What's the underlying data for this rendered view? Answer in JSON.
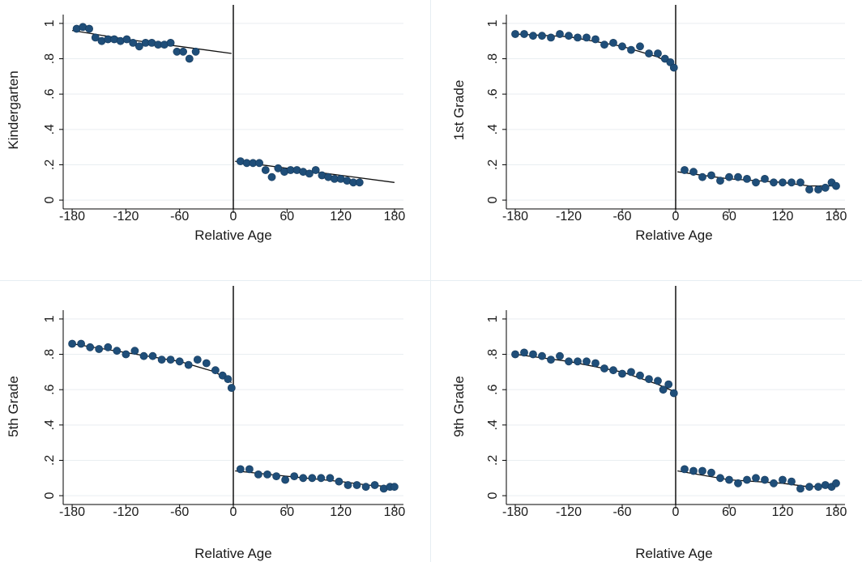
{
  "colors": {
    "marker": "#1f4e79",
    "fit": "#111111",
    "grid": "#e9eef1",
    "axis": "#000000"
  },
  "chart_data": [
    {
      "type": "scatter",
      "ylabel": "Kindergarten",
      "xlabel": "Relative Age",
      "xlim": [
        -190,
        190
      ],
      "ylim": [
        -0.05,
        1.05
      ],
      "xticks": [
        "-180",
        "-120",
        "-60",
        "0",
        "60",
        "120",
        "180"
      ],
      "yticks": [
        "0",
        ".2",
        ".4",
        ".6",
        ".8",
        "1"
      ],
      "grid": true,
      "cutoff": 0,
      "points": [
        [
          -175,
          0.97
        ],
        [
          -168,
          0.98
        ],
        [
          -161,
          0.97
        ],
        [
          -154,
          0.92
        ],
        [
          -147,
          0.9
        ],
        [
          -140,
          0.91
        ],
        [
          -133,
          0.91
        ],
        [
          -126,
          0.9
        ],
        [
          -119,
          0.91
        ],
        [
          -112,
          0.89
        ],
        [
          -105,
          0.87
        ],
        [
          -98,
          0.89
        ],
        [
          -91,
          0.89
        ],
        [
          -84,
          0.88
        ],
        [
          -77,
          0.88
        ],
        [
          -70,
          0.89
        ],
        [
          -63,
          0.84
        ],
        [
          -56,
          0.84
        ],
        [
          -49,
          0.8
        ],
        [
          -42,
          0.84
        ],
        [
          8,
          0.22
        ],
        [
          15,
          0.21
        ],
        [
          22,
          0.21
        ],
        [
          29,
          0.21
        ],
        [
          36,
          0.17
        ],
        [
          43,
          0.13
        ],
        [
          50,
          0.18
        ],
        [
          57,
          0.16
        ],
        [
          64,
          0.17
        ],
        [
          71,
          0.17
        ],
        [
          78,
          0.16
        ],
        [
          85,
          0.15
        ],
        [
          92,
          0.17
        ],
        [
          99,
          0.14
        ],
        [
          106,
          0.13
        ],
        [
          113,
          0.12
        ],
        [
          120,
          0.12
        ],
        [
          127,
          0.11
        ],
        [
          134,
          0.1
        ],
        [
          141,
          0.1
        ]
      ],
      "fit_left": [
        [
          -180,
          0.96
        ],
        [
          -120,
          0.91
        ],
        [
          -60,
          0.87
        ],
        [
          -2,
          0.83
        ]
      ],
      "fit_right": [
        [
          2,
          0.22
        ],
        [
          60,
          0.18
        ],
        [
          120,
          0.14
        ],
        [
          180,
          0.1
        ]
      ]
    },
    {
      "type": "scatter",
      "ylabel": "1st Grade",
      "xlabel": "Relative Age",
      "xlim": [
        -190,
        190
      ],
      "ylim": [
        -0.05,
        1.05
      ],
      "xticks": [
        "-180",
        "-120",
        "-60",
        "0",
        "60",
        "120",
        "180"
      ],
      "yticks": [
        "0",
        ".2",
        ".4",
        ".6",
        ".8",
        "1"
      ],
      "grid": true,
      "cutoff": 0,
      "points": [
        [
          -180,
          0.94
        ],
        [
          -170,
          0.94
        ],
        [
          -160,
          0.93
        ],
        [
          -150,
          0.93
        ],
        [
          -140,
          0.92
        ],
        [
          -130,
          0.94
        ],
        [
          -120,
          0.93
        ],
        [
          -110,
          0.92
        ],
        [
          -100,
          0.92
        ],
        [
          -90,
          0.91
        ],
        [
          -80,
          0.88
        ],
        [
          -70,
          0.89
        ],
        [
          -60,
          0.87
        ],
        [
          -50,
          0.85
        ],
        [
          -40,
          0.87
        ],
        [
          -30,
          0.83
        ],
        [
          -20,
          0.83
        ],
        [
          -12,
          0.8
        ],
        [
          -6,
          0.78
        ],
        [
          -2,
          0.75
        ],
        [
          10,
          0.17
        ],
        [
          20,
          0.16
        ],
        [
          30,
          0.13
        ],
        [
          40,
          0.14
        ],
        [
          50,
          0.11
        ],
        [
          60,
          0.13
        ],
        [
          70,
          0.13
        ],
        [
          80,
          0.12
        ],
        [
          90,
          0.1
        ],
        [
          100,
          0.12
        ],
        [
          110,
          0.1
        ],
        [
          120,
          0.1
        ],
        [
          130,
          0.1
        ],
        [
          140,
          0.1
        ],
        [
          150,
          0.06
        ],
        [
          160,
          0.06
        ],
        [
          168,
          0.07
        ],
        [
          175,
          0.1
        ],
        [
          180,
          0.08
        ]
      ],
      "fit_left": [
        [
          -180,
          0.94
        ],
        [
          -120,
          0.925
        ],
        [
          -60,
          0.87
        ],
        [
          -20,
          0.81
        ],
        [
          -2,
          0.76
        ]
      ],
      "fit_right": [
        [
          2,
          0.16
        ],
        [
          60,
          0.12
        ],
        [
          120,
          0.1
        ],
        [
          150,
          0.08
        ],
        [
          180,
          0.08
        ]
      ]
    },
    {
      "type": "scatter",
      "ylabel": "5th Grade",
      "xlabel": "Relative Age",
      "xlim": [
        -190,
        190
      ],
      "ylim": [
        -0.05,
        1.05
      ],
      "xticks": [
        "-180",
        "-120",
        "-60",
        "0",
        "60",
        "120",
        "180"
      ],
      "yticks": [
        "0",
        ".2",
        ".4",
        ".6",
        ".8",
        "1"
      ],
      "grid": true,
      "cutoff": 0,
      "points": [
        [
          -180,
          0.86
        ],
        [
          -170,
          0.86
        ],
        [
          -160,
          0.84
        ],
        [
          -150,
          0.83
        ],
        [
          -140,
          0.84
        ],
        [
          -130,
          0.82
        ],
        [
          -120,
          0.8
        ],
        [
          -110,
          0.82
        ],
        [
          -100,
          0.79
        ],
        [
          -90,
          0.79
        ],
        [
          -80,
          0.77
        ],
        [
          -70,
          0.77
        ],
        [
          -60,
          0.76
        ],
        [
          -50,
          0.74
        ],
        [
          -40,
          0.77
        ],
        [
          -30,
          0.75
        ],
        [
          -20,
          0.71
        ],
        [
          -12,
          0.68
        ],
        [
          -6,
          0.66
        ],
        [
          -2,
          0.61
        ],
        [
          8,
          0.15
        ],
        [
          18,
          0.15
        ],
        [
          28,
          0.12
        ],
        [
          38,
          0.12
        ],
        [
          48,
          0.11
        ],
        [
          58,
          0.09
        ],
        [
          68,
          0.11
        ],
        [
          78,
          0.1
        ],
        [
          88,
          0.1
        ],
        [
          98,
          0.1
        ],
        [
          108,
          0.1
        ],
        [
          118,
          0.08
        ],
        [
          128,
          0.06
        ],
        [
          138,
          0.06
        ],
        [
          148,
          0.05
        ],
        [
          158,
          0.06
        ],
        [
          168,
          0.04
        ],
        [
          175,
          0.05
        ],
        [
          180,
          0.05
        ]
      ],
      "fit_left": [
        [
          -180,
          0.86
        ],
        [
          -120,
          0.81
        ],
        [
          -60,
          0.76
        ],
        [
          -20,
          0.7
        ],
        [
          -2,
          0.64
        ]
      ],
      "fit_right": [
        [
          2,
          0.14
        ],
        [
          60,
          0.11
        ],
        [
          120,
          0.08
        ],
        [
          150,
          0.06
        ],
        [
          180,
          0.05
        ]
      ]
    },
    {
      "type": "scatter",
      "ylabel": "9th Grade",
      "xlabel": "Relative Age",
      "xlim": [
        -190,
        190
      ],
      "ylim": [
        -0.05,
        1.05
      ],
      "xticks": [
        "-180",
        "-120",
        "-60",
        "0",
        "60",
        "120",
        "180"
      ],
      "yticks": [
        "0",
        ".2",
        ".4",
        ".6",
        ".8",
        "1"
      ],
      "grid": true,
      "cutoff": 0,
      "points": [
        [
          -180,
          0.8
        ],
        [
          -170,
          0.81
        ],
        [
          -160,
          0.8
        ],
        [
          -150,
          0.79
        ],
        [
          -140,
          0.77
        ],
        [
          -130,
          0.79
        ],
        [
          -120,
          0.76
        ],
        [
          -110,
          0.76
        ],
        [
          -100,
          0.76
        ],
        [
          -90,
          0.75
        ],
        [
          -80,
          0.72
        ],
        [
          -70,
          0.71
        ],
        [
          -60,
          0.69
        ],
        [
          -50,
          0.7
        ],
        [
          -40,
          0.68
        ],
        [
          -30,
          0.66
        ],
        [
          -20,
          0.65
        ],
        [
          -14,
          0.6
        ],
        [
          -8,
          0.63
        ],
        [
          -2,
          0.58
        ],
        [
          10,
          0.15
        ],
        [
          20,
          0.14
        ],
        [
          30,
          0.14
        ],
        [
          40,
          0.13
        ],
        [
          50,
          0.1
        ],
        [
          60,
          0.09
        ],
        [
          70,
          0.07
        ],
        [
          80,
          0.09
        ],
        [
          90,
          0.1
        ],
        [
          100,
          0.09
        ],
        [
          110,
          0.07
        ],
        [
          120,
          0.09
        ],
        [
          130,
          0.08
        ],
        [
          140,
          0.04
        ],
        [
          150,
          0.05
        ],
        [
          160,
          0.05
        ],
        [
          168,
          0.06
        ],
        [
          175,
          0.05
        ],
        [
          180,
          0.07
        ]
      ],
      "fit_left": [
        [
          -180,
          0.8
        ],
        [
          -120,
          0.76
        ],
        [
          -60,
          0.7
        ],
        [
          -20,
          0.63
        ],
        [
          -2,
          0.59
        ]
      ],
      "fit_right": [
        [
          2,
          0.14
        ],
        [
          60,
          0.09
        ],
        [
          120,
          0.07
        ],
        [
          150,
          0.05
        ],
        [
          180,
          0.06
        ]
      ]
    }
  ]
}
